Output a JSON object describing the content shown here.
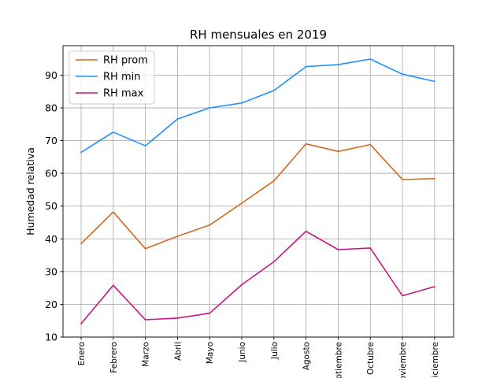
{
  "chart_data": {
    "type": "line",
    "title": "RH mensuales en 2019",
    "xlabel": "",
    "ylabel": "Humedad relativa",
    "categories": [
      "Enero",
      "Febrero",
      "Marzo",
      "Abril",
      "Mayo",
      "Junio",
      "Julio",
      "Agosto",
      "Septiembre",
      "Octubre",
      "Noviembre",
      "Diciembre"
    ],
    "ylim": [
      10,
      99
    ],
    "yticks": [
      10,
      20,
      30,
      40,
      50,
      60,
      70,
      80,
      90
    ],
    "grid": true,
    "legend_position": "upper-left",
    "series": [
      {
        "name": "RH prom",
        "color": "#d2691e",
        "values": [
          38.5,
          48.2,
          37.0,
          40.8,
          44.2,
          50.9,
          57.7,
          69.0,
          66.7,
          68.8,
          58.1,
          58.4
        ]
      },
      {
        "name": "RH min",
        "color": "#1e90ff",
        "values": [
          66.4,
          72.6,
          68.4,
          76.6,
          80.0,
          81.5,
          85.3,
          92.6,
          93.2,
          94.9,
          90.3,
          88.1
        ]
      },
      {
        "name": "RH max",
        "color": "#c71585",
        "values": [
          14.1,
          25.8,
          15.3,
          15.8,
          17.3,
          26.0,
          33.0,
          42.3,
          36.7,
          37.2,
          22.6,
          25.4
        ]
      }
    ]
  }
}
